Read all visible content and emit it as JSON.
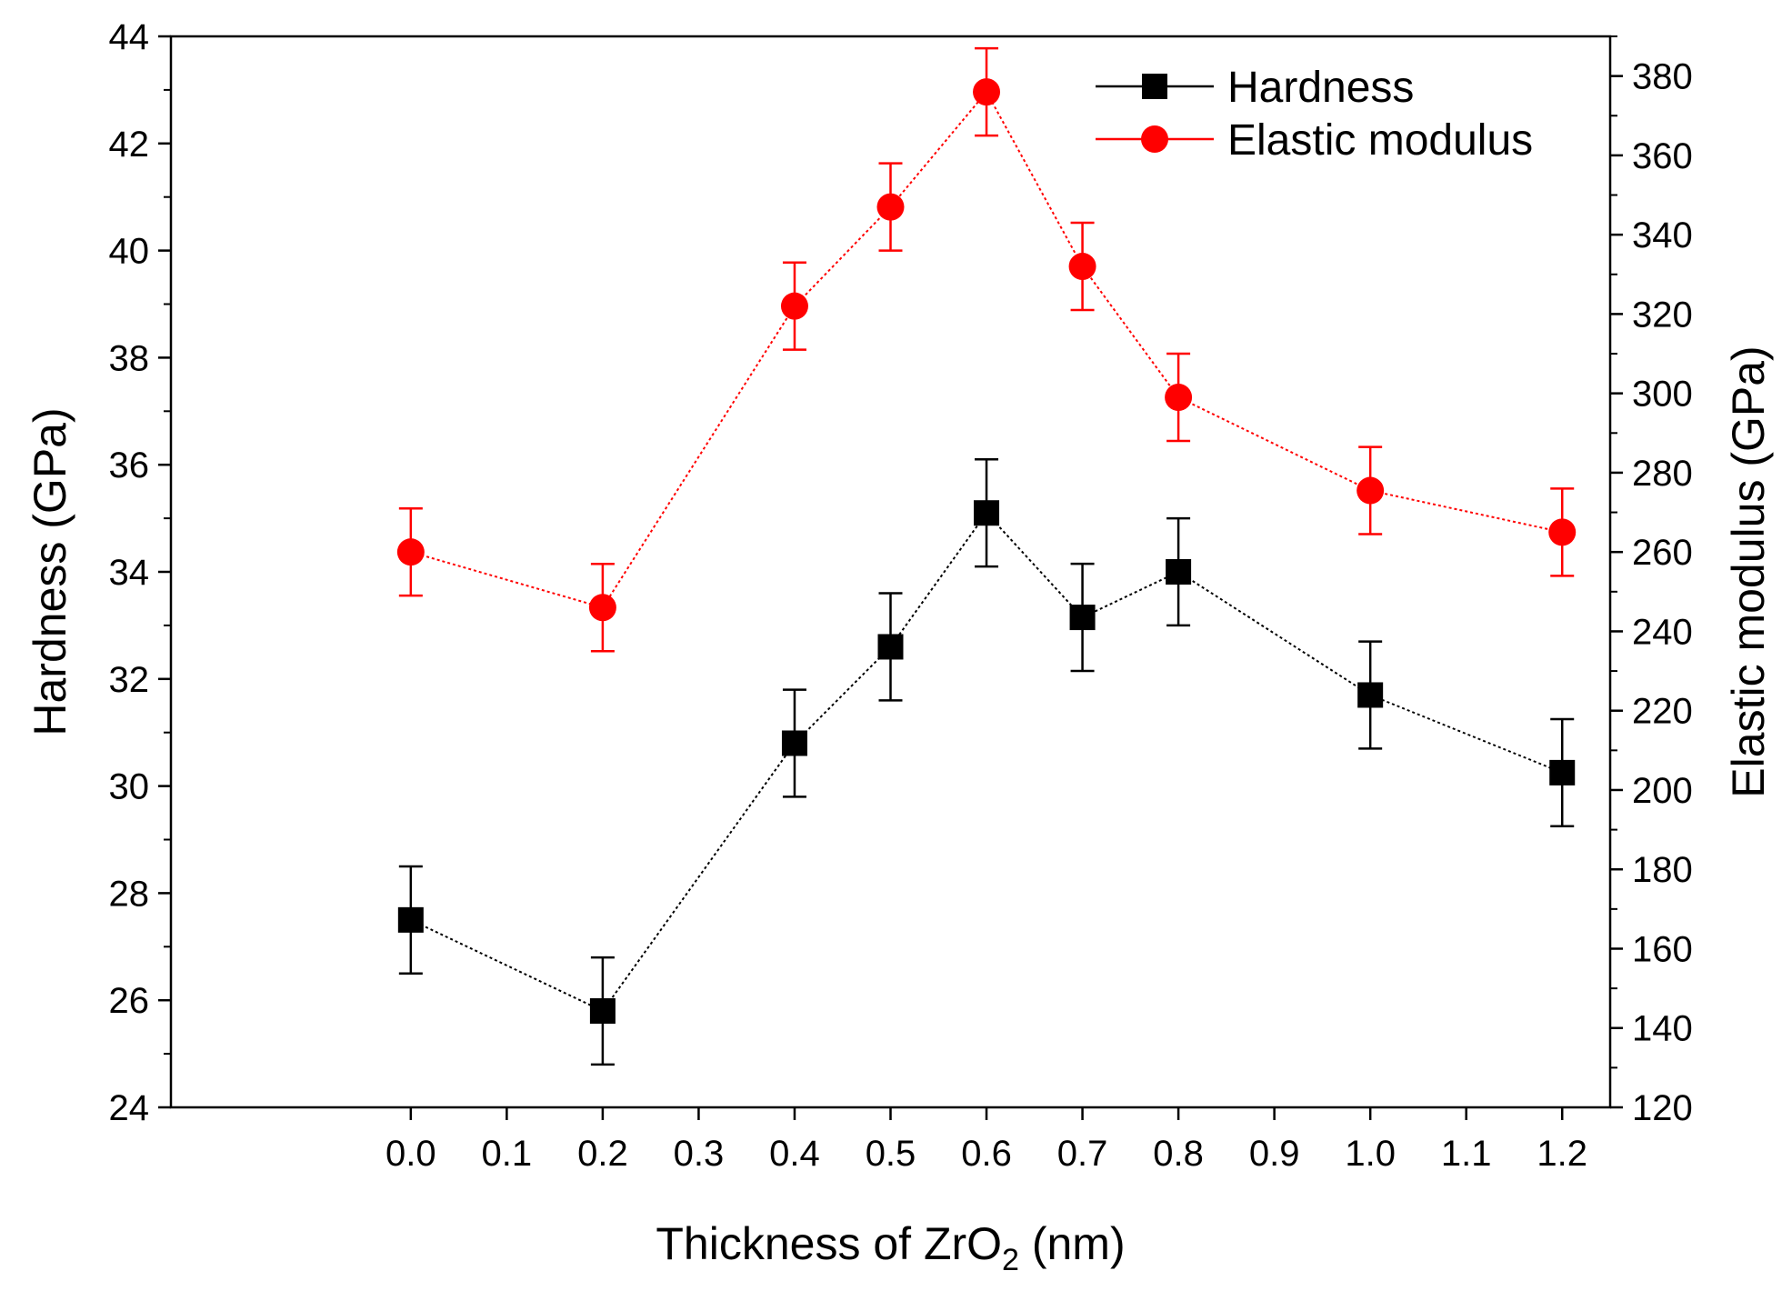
{
  "chart_data": {
    "type": "line",
    "title": "",
    "xlabel": {
      "main": "Thickness of ZrO",
      "sub": "2",
      "suffix": " (nm)"
    },
    "ylabel_left": "Hardness (GPa)",
    "ylabel_right": "Elastic modulus (GPa)",
    "xlim": [
      -0.25,
      1.25
    ],
    "ylim_left": [
      24,
      44
    ],
    "ylim_right": [
      120,
      390
    ],
    "x_ticks": [
      "0.0",
      "0.1",
      "0.2",
      "0.3",
      "0.4",
      "0.5",
      "0.6",
      "0.7",
      "0.8",
      "0.9",
      "1.0",
      "1.1",
      "1.2"
    ],
    "y_left_ticks": [
      "24",
      "26",
      "28",
      "30",
      "32",
      "34",
      "36",
      "38",
      "40",
      "42",
      "44"
    ],
    "y_right_ticks": [
      "120",
      "140",
      "160",
      "180",
      "200",
      "220",
      "240",
      "260",
      "280",
      "300",
      "320",
      "340",
      "360",
      "380"
    ],
    "legend_position": "top-right",
    "series": [
      {
        "name": "Hardness",
        "axis": "left",
        "color": "#000000",
        "marker": "square",
        "x": [
          0.0,
          0.2,
          0.4,
          0.5,
          0.6,
          0.7,
          0.8,
          1.0,
          1.2
        ],
        "y": [
          27.5,
          25.8,
          30.8,
          32.6,
          35.1,
          33.15,
          34.0,
          31.7,
          30.25
        ],
        "err": [
          1.0,
          1.0,
          1.0,
          1.0,
          1.0,
          1.0,
          1.0,
          1.0,
          1.0
        ]
      },
      {
        "name": "Elastic modulus",
        "axis": "right",
        "color": "#ff0000",
        "marker": "circle",
        "x": [
          0.0,
          0.2,
          0.4,
          0.5,
          0.6,
          0.7,
          0.8,
          1.0,
          1.2
        ],
        "y": [
          260,
          246,
          322,
          347,
          376,
          332,
          299,
          275.5,
          265
        ],
        "err": [
          11,
          11,
          11,
          11,
          11,
          11,
          11,
          11,
          11
        ]
      }
    ]
  }
}
